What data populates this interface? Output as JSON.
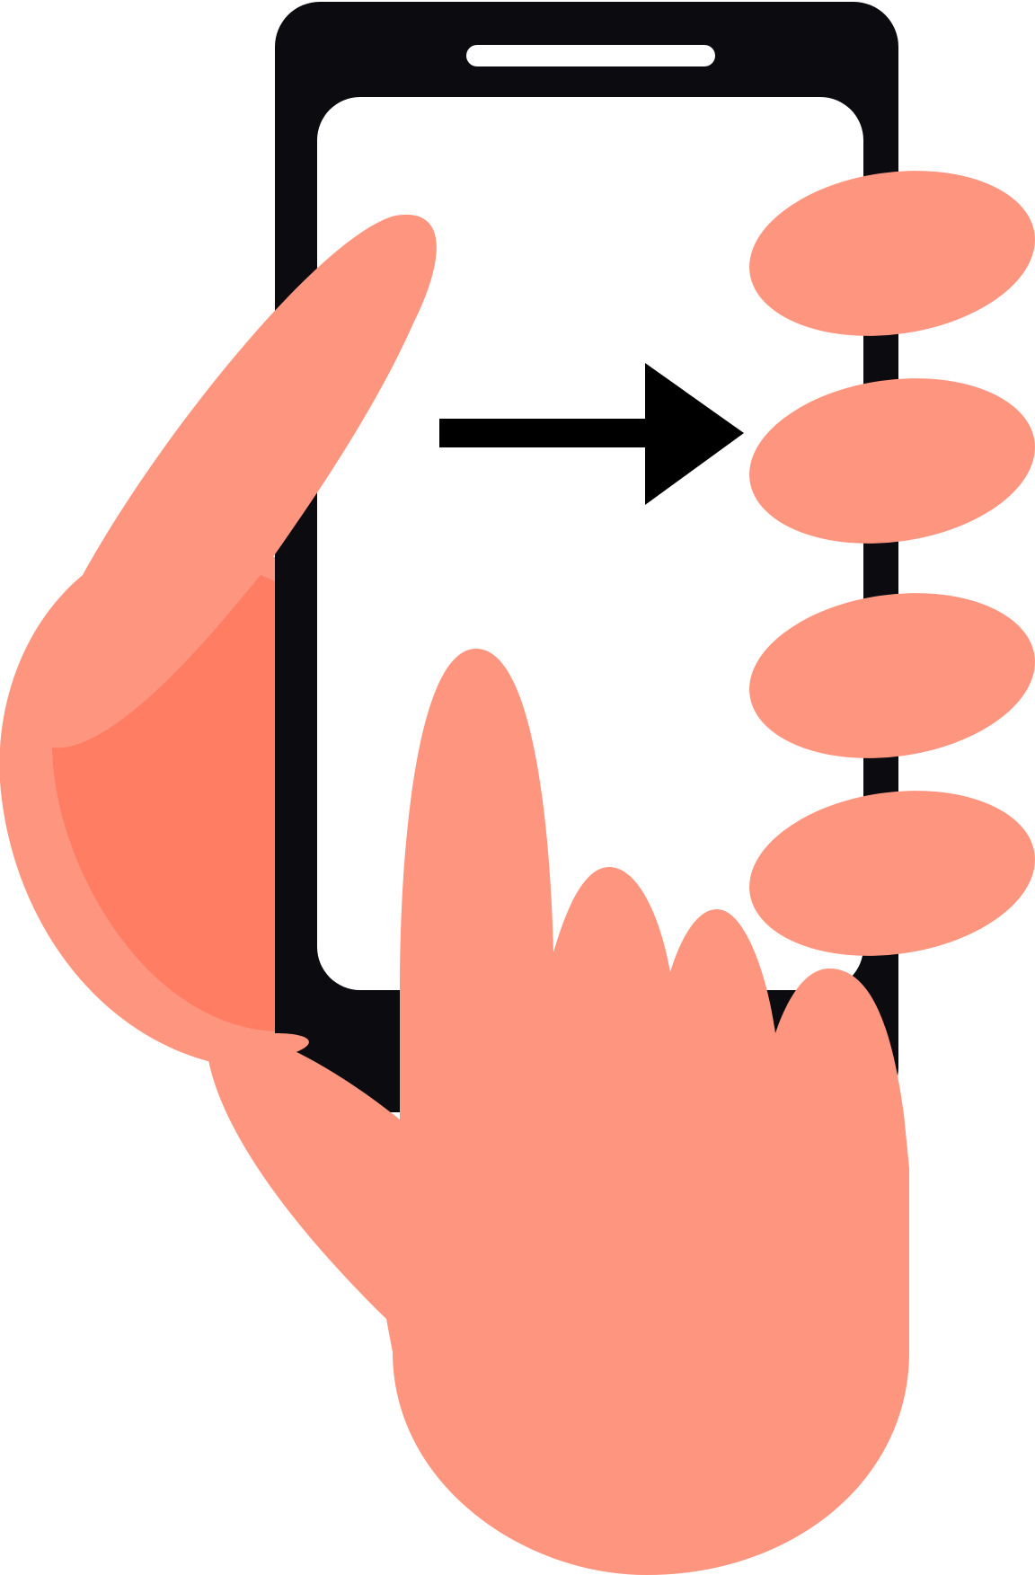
{
  "colors": {
    "background": "#ffffff",
    "phone_body": "#0b0b10",
    "screen": "#ffffff",
    "skin": "#fd957f",
    "skin_shadow": "#ff7d62",
    "arrow": "#000000"
  },
  "icons": {
    "phone": "smartphone-icon",
    "swipe_arrow": "arrow-right-icon",
    "hand": "hand-holding-phone-icon",
    "pointer": "pointing-finger-icon"
  }
}
